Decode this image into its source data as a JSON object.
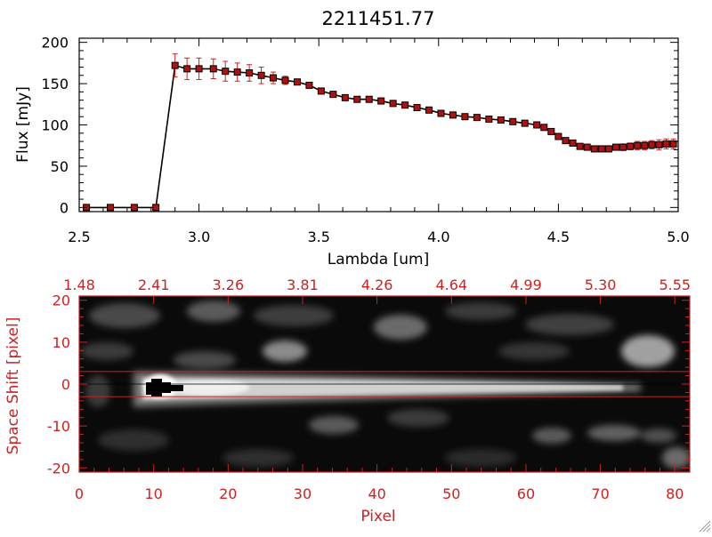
{
  "chart_data": [
    {
      "type": "line",
      "title": "2211451.77",
      "xlabel": "Lambda [um]",
      "ylabel": "Flux [mJy]",
      "xlim": [
        2.5,
        5.0
      ],
      "ylim": [
        -5,
        205
      ],
      "x_ticks": [
        "2.5",
        "3.0",
        "3.5",
        "4.0",
        "4.5",
        "5.0"
      ],
      "y_ticks": [
        "0",
        "50",
        "100",
        "150",
        "200"
      ],
      "line_color": "#000000",
      "marker_color": "#b01010",
      "errorbar_color": "#cc2222",
      "series": [
        {
          "x": [
            2.53,
            2.63,
            2.73,
            2.82,
            2.9,
            2.95,
            3.0,
            3.06,
            3.11,
            3.16,
            3.21,
            3.26,
            3.31,
            3.36,
            3.41,
            3.46,
            3.51,
            3.56,
            3.61,
            3.66,
            3.71,
            3.76,
            3.81,
            3.86,
            3.91,
            3.96,
            4.01,
            4.06,
            4.11,
            4.16,
            4.21,
            4.26,
            4.31,
            4.36,
            4.41,
            4.44,
            4.47,
            4.5,
            4.53,
            4.56,
            4.59,
            4.62,
            4.65,
            4.68,
            4.71,
            4.74,
            4.77,
            4.8,
            4.83,
            4.86,
            4.89,
            4.92,
            4.95,
            4.98
          ],
          "y": [
            0,
            0,
            0,
            0,
            172,
            168,
            168,
            168,
            165,
            164,
            163,
            160,
            157,
            154,
            152,
            148,
            141,
            137,
            133,
            131,
            131,
            129,
            126,
            124,
            121,
            118,
            114,
            112,
            110,
            109,
            107,
            106,
            104,
            102,
            100,
            97,
            92,
            86,
            81,
            78,
            74,
            73,
            71,
            71,
            71,
            73,
            73,
            74,
            75,
            75,
            76,
            76,
            77,
            77
          ],
          "yerr": [
            0,
            0,
            0,
            0,
            14,
            13,
            13,
            12,
            12,
            11,
            10,
            10,
            7,
            5,
            3,
            2,
            2,
            2,
            2,
            2,
            2,
            2,
            2,
            2,
            2,
            2,
            2,
            2,
            2,
            2,
            2,
            2,
            2,
            2,
            2,
            2,
            2,
            2,
            2,
            2,
            2,
            2,
            2,
            2,
            3,
            3,
            4,
            4,
            5,
            5,
            5,
            6,
            6,
            6
          ]
        }
      ]
    },
    {
      "type": "heatmap",
      "xlabel": "Pixel",
      "ylabel": "Space Shift [pixel]",
      "xlim": [
        0,
        82
      ],
      "ylim": [
        -21,
        21
      ],
      "x_ticks": [
        "0",
        "10",
        "20",
        "30",
        "40",
        "50",
        "60",
        "70",
        "80"
      ],
      "y_ticks": [
        "20",
        "10",
        "0",
        "-10",
        "-20"
      ],
      "top_ticks": [
        "1.48",
        "2.41",
        "3.26",
        "3.81",
        "4.26",
        "4.64",
        "4.99",
        "5.30",
        "5.55"
      ],
      "axis_color": "#cc2222",
      "extraction_aperture": [
        -3,
        3
      ],
      "trace_center": 0,
      "trace_peak_x": 11,
      "trace_end_x": 75,
      "colormap": "grayscale"
    }
  ]
}
